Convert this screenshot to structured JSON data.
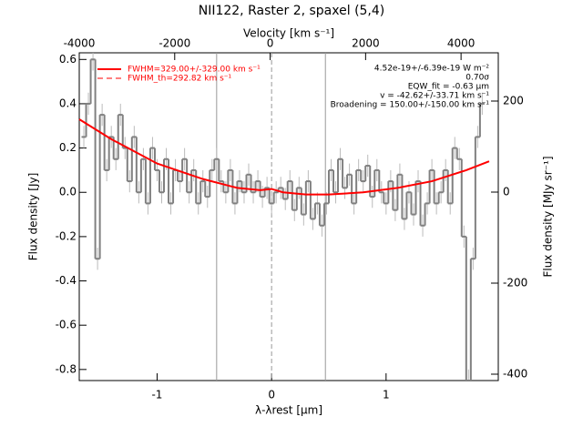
{
  "chart_data": {
    "type": "step",
    "title": "NII122, Raster 2, spaxel (5,4)",
    "xlabel": "λ-λrest [μm]",
    "ylabel": "Flux density [Jy]",
    "x2label": "Velocity [km s⁻¹]",
    "y2label": "Flux density [MJy sr⁻¹]",
    "xlim": [
      -1.68,
      1.98
    ],
    "xticks": [
      -1,
      0,
      1
    ],
    "ylim": [
      -0.85,
      0.63
    ],
    "yticks": [
      -0.8,
      -0.6,
      -0.4,
      -0.2,
      {
        "value": 0,
        "label": "0.0"
      },
      0.2,
      0.4,
      0.6
    ],
    "x2lim": [
      -4000,
      4780
    ],
    "x2ticks": [
      -4000,
      -2000,
      0,
      2000,
      4000
    ],
    "y2lim": [
      -414,
      306
    ],
    "y2ticks": [
      -400,
      -200,
      0,
      200
    ],
    "vlines": [
      -0.48,
      0.47
    ],
    "center_line": 0,
    "annotations": [
      "4.52e-19+/-6.39e-19 W m⁻²",
      "0.70σ",
      "EQW_fit = -0.63 μm",
      "v = -42.62+/-33.71 km s⁻¹",
      "Broadening = 150.00+/-150.00 km s⁻¹"
    ],
    "spectrum": {
      "color": "#808080",
      "error": 0.05,
      "x": [
        -1.64,
        -1.6,
        -1.56,
        -1.52,
        -1.48,
        -1.44,
        -1.4,
        -1.36,
        -1.32,
        -1.28,
        -1.24,
        -1.2,
        -1.16,
        -1.12,
        -1.08,
        -1.04,
        -1.0,
        -0.96,
        -0.92,
        -0.88,
        -0.84,
        -0.8,
        -0.76,
        -0.72,
        -0.68,
        -0.64,
        -0.6,
        -0.56,
        -0.52,
        -0.48,
        -0.44,
        -0.4,
        -0.36,
        -0.32,
        -0.28,
        -0.24,
        -0.2,
        -0.16,
        -0.12,
        -0.08,
        -0.04,
        0.0,
        0.04,
        0.08,
        0.12,
        0.16,
        0.2,
        0.24,
        0.28,
        0.32,
        0.36,
        0.4,
        0.44,
        0.48,
        0.52,
        0.56,
        0.6,
        0.64,
        0.68,
        0.72,
        0.76,
        0.8,
        0.84,
        0.88,
        0.92,
        0.96,
        1.0,
        1.04,
        1.08,
        1.12,
        1.16,
        1.2,
        1.24,
        1.28,
        1.32,
        1.36,
        1.4,
        1.44,
        1.48,
        1.52,
        1.56,
        1.6,
        1.64,
        1.68,
        1.72,
        1.76,
        1.8,
        1.84
      ],
      "values": [
        0.25,
        0.4,
        0.6,
        -0.3,
        0.35,
        0.1,
        0.25,
        0.15,
        0.35,
        0.2,
        0.05,
        0.25,
        0,
        0.15,
        -0.05,
        0.2,
        0.1,
        0,
        0.15,
        -0.05,
        0.1,
        0.05,
        0.15,
        0,
        0.1,
        -0.05,
        0.05,
        -0.02,
        0.1,
        0.15,
        0.05,
        0,
        0.1,
        -0.05,
        0.05,
        0,
        0.08,
        0,
        0.05,
        -0.02,
        0.02,
        -0.05,
        0,
        0.02,
        -0.03,
        0.05,
        -0.08,
        0.02,
        -0.1,
        0.05,
        -0.12,
        -0.05,
        -0.15,
        -0.05,
        0.1,
        0,
        0.15,
        0.02,
        0.08,
        -0.05,
        0.1,
        0.05,
        0.12,
        -0.02,
        0.1,
        0,
        -0.05,
        0.05,
        -0.08,
        0.08,
        -0.12,
        0,
        -0.1,
        0.05,
        -0.15,
        -0.05,
        0.1,
        -0.05,
        0,
        0.1,
        -0.05,
        0.2,
        0.15,
        -0.2,
        -0.85,
        -0.3,
        0.25,
        0.4
      ]
    },
    "series": [
      {
        "name": "FWHM=329.00+/-329.00 km s⁻¹",
        "color": "#ff0000",
        "dash": false,
        "x": [
          -1.68,
          -1.4,
          -1.0,
          -0.6,
          -0.3,
          -0.1,
          0,
          0.1,
          0.3,
          0.5,
          0.8,
          1.1,
          1.4,
          1.7,
          1.9
        ],
        "values": [
          0.33,
          0.24,
          0.13,
          0.06,
          0.02,
          0.01,
          0.015,
          0,
          -0.01,
          -0.01,
          0,
          0.02,
          0.05,
          0.1,
          0.14
        ]
      },
      {
        "name": "FWHM_th=292.82 km s⁻¹",
        "color": "#ff0000",
        "dash": true
      }
    ]
  }
}
